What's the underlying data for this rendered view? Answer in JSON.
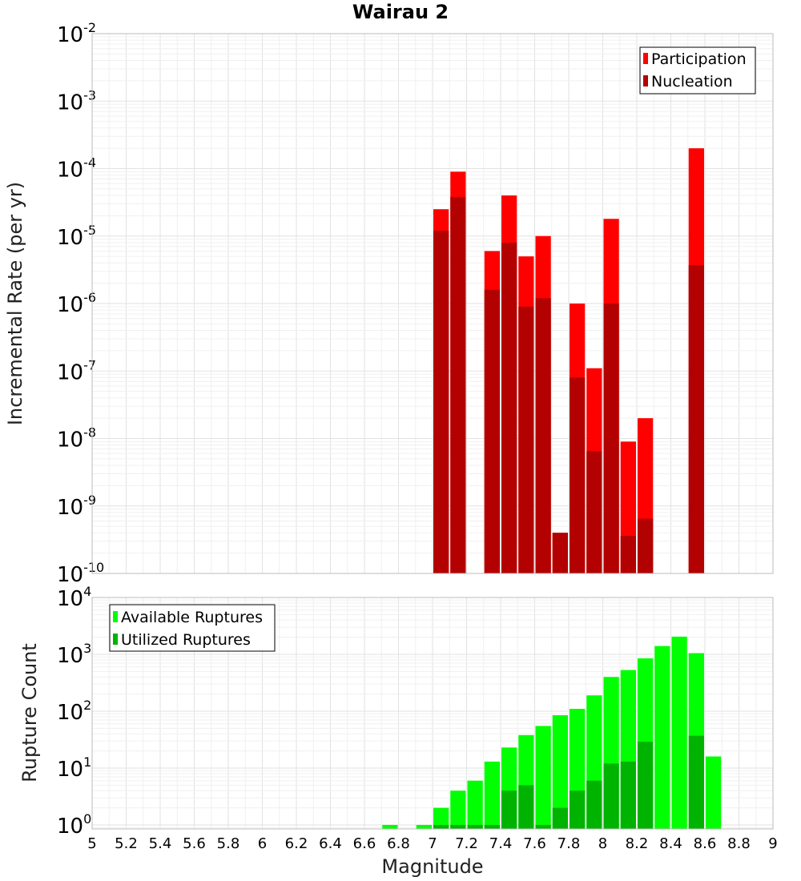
{
  "chart_data": [
    {
      "type": "bar",
      "title": "Wairau 2",
      "ylabel": "Incremental Rate (per yr)",
      "xlabel": "",
      "yscale": "log",
      "ylim": [
        1e-10,
        0.01
      ],
      "xlim": [
        5,
        9
      ],
      "ytick_base": "10",
      "yticks": [
        {
          "value": 0.01,
          "exp": "-2"
        },
        {
          "value": 0.001,
          "exp": "-3"
        },
        {
          "value": 0.0001,
          "exp": "-4"
        },
        {
          "value": 1e-05,
          "exp": "-5"
        },
        {
          "value": 1e-06,
          "exp": "-6"
        },
        {
          "value": 1e-07,
          "exp": "-7"
        },
        {
          "value": 1e-08,
          "exp": "-8"
        },
        {
          "value": 1e-09,
          "exp": "-9"
        },
        {
          "value": 1e-10,
          "exp": "-10"
        }
      ],
      "legend_position": "top-right",
      "grid": true,
      "series": [
        {
          "name": "Participation",
          "color": "#ff0000",
          "points": [
            {
              "x": 7.05,
              "y": 2.5e-05
            },
            {
              "x": 7.15,
              "y": 9e-05
            },
            {
              "x": 7.35,
              "y": 6e-06
            },
            {
              "x": 7.45,
              "y": 4e-05
            },
            {
              "x": 7.55,
              "y": 5e-06
            },
            {
              "x": 7.65,
              "y": 1e-05
            },
            {
              "x": 7.75,
              "y": 4e-10
            },
            {
              "x": 7.85,
              "y": 1e-06
            },
            {
              "x": 7.95,
              "y": 1.1e-07
            },
            {
              "x": 8.05,
              "y": 1.8e-05
            },
            {
              "x": 8.15,
              "y": 9e-09
            },
            {
              "x": 8.25,
              "y": 2e-08
            },
            {
              "x": 8.55,
              "y": 0.0002
            }
          ]
        },
        {
          "name": "Nucleation",
          "color": "#b30000",
          "points": [
            {
              "x": 7.05,
              "y": 1.2e-05
            },
            {
              "x": 7.15,
              "y": 3.8e-05
            },
            {
              "x": 7.35,
              "y": 1.6e-06
            },
            {
              "x": 7.45,
              "y": 8e-06
            },
            {
              "x": 7.55,
              "y": 9e-07
            },
            {
              "x": 7.65,
              "y": 1.2e-06
            },
            {
              "x": 7.75,
              "y": 4e-10
            },
            {
              "x": 7.85,
              "y": 8e-08
            },
            {
              "x": 7.95,
              "y": 6.5e-09
            },
            {
              "x": 8.05,
              "y": 1e-06
            },
            {
              "x": 8.15,
              "y": 3.6e-10
            },
            {
              "x": 8.25,
              "y": 6.5e-10
            },
            {
              "x": 8.55,
              "y": 3.7e-06
            }
          ]
        }
      ]
    },
    {
      "type": "bar",
      "title": "",
      "ylabel": "Rupture Count",
      "xlabel": "Magnitude",
      "yscale": "log",
      "ylim": [
        0.85,
        10000
      ],
      "xlim": [
        5,
        9
      ],
      "ytick_base": "10",
      "yticks": [
        {
          "value": 1,
          "exp": "0"
        },
        {
          "value": 10,
          "exp": "1"
        },
        {
          "value": 100,
          "exp": "2"
        },
        {
          "value": 1000,
          "exp": "3"
        },
        {
          "value": 10000,
          "exp": "4"
        }
      ],
      "xticks": [
        "5",
        "5.2",
        "5.4",
        "5.6",
        "5.8",
        "6",
        "6.2",
        "6.4",
        "6.6",
        "6.8",
        "7",
        "7.2",
        "7.4",
        "7.6",
        "7.8",
        "8",
        "8.2",
        "8.4",
        "8.6",
        "8.8",
        "9"
      ],
      "legend_position": "top-left",
      "grid": true,
      "series": [
        {
          "name": "Available Ruptures",
          "color": "#00ff00",
          "points": [
            {
              "x": 6.75,
              "y": 1
            },
            {
              "x": 6.95,
              "y": 1
            },
            {
              "x": 7.05,
              "y": 2
            },
            {
              "x": 7.15,
              "y": 4
            },
            {
              "x": 7.25,
              "y": 6
            },
            {
              "x": 7.35,
              "y": 13
            },
            {
              "x": 7.45,
              "y": 23
            },
            {
              "x": 7.55,
              "y": 38
            },
            {
              "x": 7.65,
              "y": 55
            },
            {
              "x": 7.75,
              "y": 85
            },
            {
              "x": 7.85,
              "y": 110
            },
            {
              "x": 7.95,
              "y": 190
            },
            {
              "x": 8.05,
              "y": 400
            },
            {
              "x": 8.15,
              "y": 530
            },
            {
              "x": 8.25,
              "y": 850
            },
            {
              "x": 8.35,
              "y": 1400
            },
            {
              "x": 8.45,
              "y": 2050
            },
            {
              "x": 8.55,
              "y": 1050
            },
            {
              "x": 8.65,
              "y": 16
            }
          ]
        },
        {
          "name": "Utilized Ruptures",
          "color": "#00b300",
          "points": [
            {
              "x": 7.05,
              "y": 1
            },
            {
              "x": 7.15,
              "y": 1
            },
            {
              "x": 7.25,
              "y": 1
            },
            {
              "x": 7.35,
              "y": 1
            },
            {
              "x": 7.45,
              "y": 4
            },
            {
              "x": 7.55,
              "y": 5
            },
            {
              "x": 7.65,
              "y": 1
            },
            {
              "x": 7.75,
              "y": 2
            },
            {
              "x": 7.85,
              "y": 4
            },
            {
              "x": 7.95,
              "y": 6
            },
            {
              "x": 8.05,
              "y": 12
            },
            {
              "x": 8.15,
              "y": 13
            },
            {
              "x": 8.25,
              "y": 29
            },
            {
              "x": 8.55,
              "y": 37
            }
          ]
        }
      ]
    }
  ]
}
